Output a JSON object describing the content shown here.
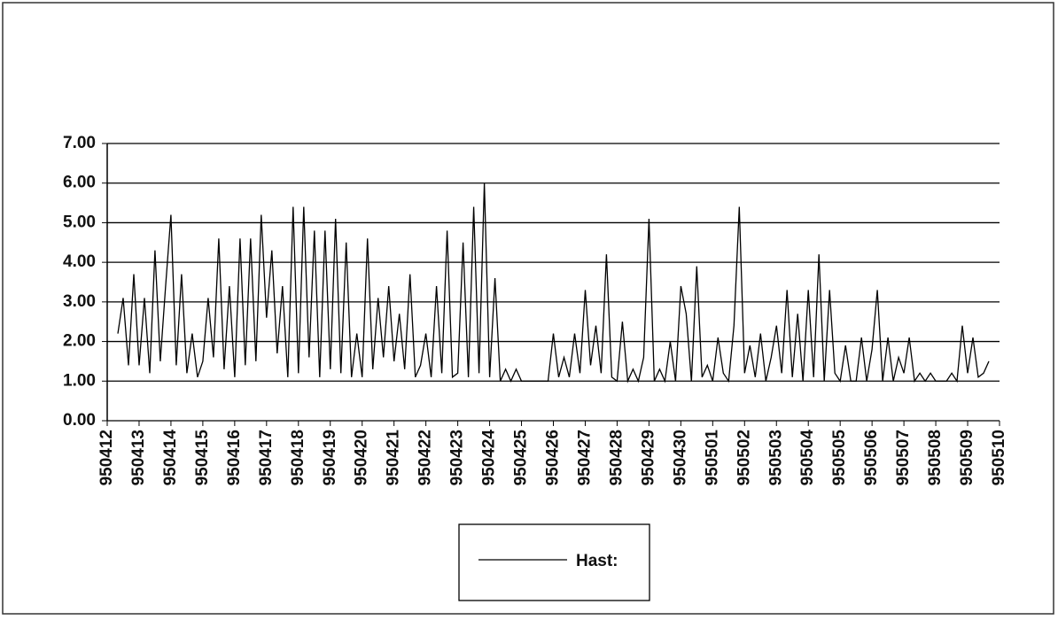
{
  "chart_data": {
    "type": "line",
    "categories": [
      "950412",
      null,
      null,
      null,
      null,
      null,
      "950413",
      null,
      null,
      null,
      null,
      null,
      "950414",
      null,
      null,
      null,
      null,
      null,
      "950415",
      null,
      null,
      null,
      null,
      null,
      "950416",
      null,
      null,
      null,
      null,
      null,
      "950417",
      null,
      null,
      null,
      null,
      null,
      "950418",
      null,
      null,
      null,
      null,
      null,
      "950419",
      null,
      null,
      null,
      null,
      null,
      "950420",
      null,
      null,
      null,
      null,
      null,
      "950421",
      null,
      null,
      null,
      null,
      null,
      "950422",
      null,
      null,
      null,
      null,
      null,
      "950423",
      null,
      null,
      null,
      null,
      null,
      "950424",
      null,
      null,
      null,
      null,
      null,
      "950425",
      null,
      null,
      null,
      null,
      null,
      "950426",
      null,
      null,
      null,
      null,
      null,
      "950427",
      null,
      null,
      null,
      null,
      null,
      "950428",
      null,
      null,
      null,
      null,
      null,
      "950429",
      null,
      null,
      null,
      null,
      null,
      "950430",
      null,
      null,
      null,
      null,
      null,
      "950501",
      null,
      null,
      null,
      null,
      null,
      "950502",
      null,
      null,
      null,
      null,
      null,
      "950503",
      null,
      null,
      null,
      null,
      null,
      "950504",
      null,
      null,
      null,
      null,
      null,
      "950505",
      null,
      null,
      null,
      null,
      null,
      "950506",
      null,
      null,
      null,
      null,
      null,
      "950507",
      null,
      null,
      null,
      null,
      null,
      "950508",
      null,
      null,
      null,
      null,
      null,
      "950509",
      null,
      null,
      null,
      null,
      null,
      "950510"
    ],
    "series": [
      {
        "name": "Hast:",
        "color": "#000000",
        "values": [
          null,
          null,
          2.2,
          3.1,
          1.4,
          3.7,
          1.4,
          3.1,
          1.2,
          4.3,
          1.5,
          3.4,
          5.2,
          1.4,
          3.7,
          1.2,
          2.2,
          1.1,
          1.5,
          3.1,
          1.6,
          4.6,
          1.3,
          3.4,
          1.1,
          4.6,
          1.4,
          4.6,
          1.5,
          5.2,
          2.6,
          4.3,
          1.7,
          3.4,
          1.1,
          5.4,
          1.2,
          5.4,
          1.6,
          4.8,
          1.1,
          4.8,
          1.3,
          5.1,
          1.2,
          4.5,
          1.1,
          2.2,
          1.1,
          4.6,
          1.3,
          3.1,
          1.6,
          3.4,
          1.5,
          2.7,
          1.3,
          3.7,
          1.1,
          1.4,
          2.2,
          1.1,
          3.4,
          1.2,
          4.8,
          1.1,
          1.2,
          4.5,
          1.1,
          5.4,
          1.2,
          6.0,
          1.1,
          3.6,
          1.0,
          1.3,
          1.0,
          1.3,
          1.0,
          1.0,
          1.0,
          1.0,
          1.0,
          1.0,
          2.2,
          1.1,
          1.6,
          1.1,
          2.2,
          1.2,
          3.3,
          1.4,
          2.4,
          1.2,
          4.2,
          1.1,
          1.0,
          2.5,
          1.0,
          1.3,
          1.0,
          1.6,
          5.1,
          1.0,
          1.3,
          1.0,
          2.0,
          1.0,
          3.4,
          2.7,
          1.0,
          3.9,
          1.1,
          1.4,
          1.0,
          2.1,
          1.2,
          1.0,
          2.4,
          5.4,
          1.2,
          1.9,
          1.1,
          2.2,
          1.0,
          1.6,
          2.4,
          1.2,
          3.3,
          1.1,
          2.7,
          1.0,
          3.3,
          1.1,
          4.2,
          1.0,
          3.3,
          1.2,
          1.0,
          1.9,
          1.0,
          1.0,
          2.1,
          1.0,
          1.8,
          3.3,
          1.0,
          2.1,
          1.0,
          1.6,
          1.2,
          2.1,
          1.0,
          1.2,
          1.0,
          1.2,
          1.0,
          1.0,
          1.0,
          1.2,
          1.0,
          2.4,
          1.2,
          2.1,
          1.1,
          1.2,
          1.5,
          null,
          null
        ]
      }
    ],
    "ylim": [
      0,
      7
    ],
    "yticks": [
      {
        "value": 0,
        "label": "0.00"
      },
      {
        "value": 1,
        "label": "1.00"
      },
      {
        "value": 2,
        "label": "2.00"
      },
      {
        "value": 3,
        "label": "3.00"
      },
      {
        "value": 4,
        "label": "4.00"
      },
      {
        "value": 5,
        "label": "5.00"
      },
      {
        "value": 6,
        "label": "6.00"
      },
      {
        "value": 7,
        "label": "7.00"
      }
    ],
    "grid": true,
    "legend": "bottom"
  }
}
